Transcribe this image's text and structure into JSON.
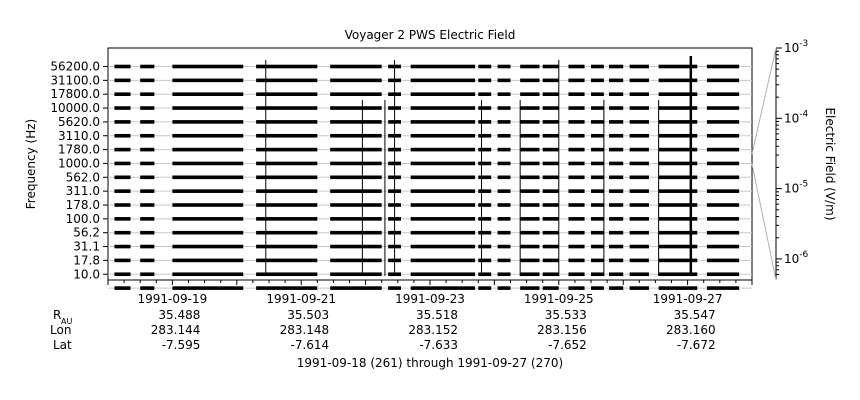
{
  "chart_data": {
    "type": "line",
    "title": "Voyager 2 PWS Electric Field",
    "ylabel": "Frequency (Hz)",
    "colorbar_label": "Electric Field (V/m)",
    "frequency_channels": [
      "56200.0",
      "31100.0",
      "17800.0",
      "10000.0",
      "5620.0",
      "3110.0",
      "1780.0",
      "1000.0",
      "562.0",
      "311.0",
      "178.0",
      "100.0",
      "56.2",
      "31.1",
      "17.8",
      "10.0"
    ],
    "colorbar_ticks": [
      {
        "base": "10",
        "exp": "-3",
        "value": 0.001
      },
      {
        "base": "10",
        "exp": "-4",
        "value": 0.0001
      },
      {
        "base": "10",
        "exp": "-5",
        "value": 1e-05
      },
      {
        "base": "10",
        "exp": "-6",
        "value": 1e-06
      }
    ],
    "x_range_days": [
      261,
      271
    ],
    "date_ticks": [
      "1991-09-19",
      "1991-09-21",
      "1991-09-23",
      "1991-09-25",
      "1991-09-27"
    ],
    "ephemeris_labels": {
      "r": "R",
      "r_sub": "AU",
      "lon": "Lon",
      "lat": "Lat"
    },
    "ephemeris": {
      "r": [
        "35.488",
        "35.503",
        "35.518",
        "35.533",
        "35.547"
      ],
      "lon": [
        "283.144",
        "283.148",
        "283.152",
        "283.156",
        "283.160"
      ],
      "lat": [
        "-7.595",
        "-7.614",
        "-7.633",
        "-7.652",
        "-7.672"
      ]
    },
    "footer": "1991-09-18 (261) through 1991-09-27 (270)",
    "data_segments_days": [
      [
        261.1,
        261.35
      ],
      [
        261.5,
        261.72
      ],
      [
        262.0,
        263.1
      ],
      [
        263.3,
        264.25
      ],
      [
        264.45,
        265.25
      ],
      [
        265.35,
        265.55
      ],
      [
        265.7,
        266.7
      ],
      [
        266.75,
        266.95
      ],
      [
        267.05,
        267.25
      ],
      [
        267.4,
        267.7
      ],
      [
        267.75,
        268.0
      ],
      [
        268.15,
        268.4
      ],
      [
        268.5,
        268.7
      ],
      [
        268.78,
        269.0
      ],
      [
        269.1,
        269.4
      ],
      [
        269.55,
        270.15
      ],
      [
        270.3,
        270.8
      ]
    ],
    "emission_spikes_days": [
      263.45,
      264.95,
      265.3,
      265.45,
      266.8,
      267.4,
      268.0,
      268.7,
      269.55,
      270.05
    ],
    "grid": true
  }
}
